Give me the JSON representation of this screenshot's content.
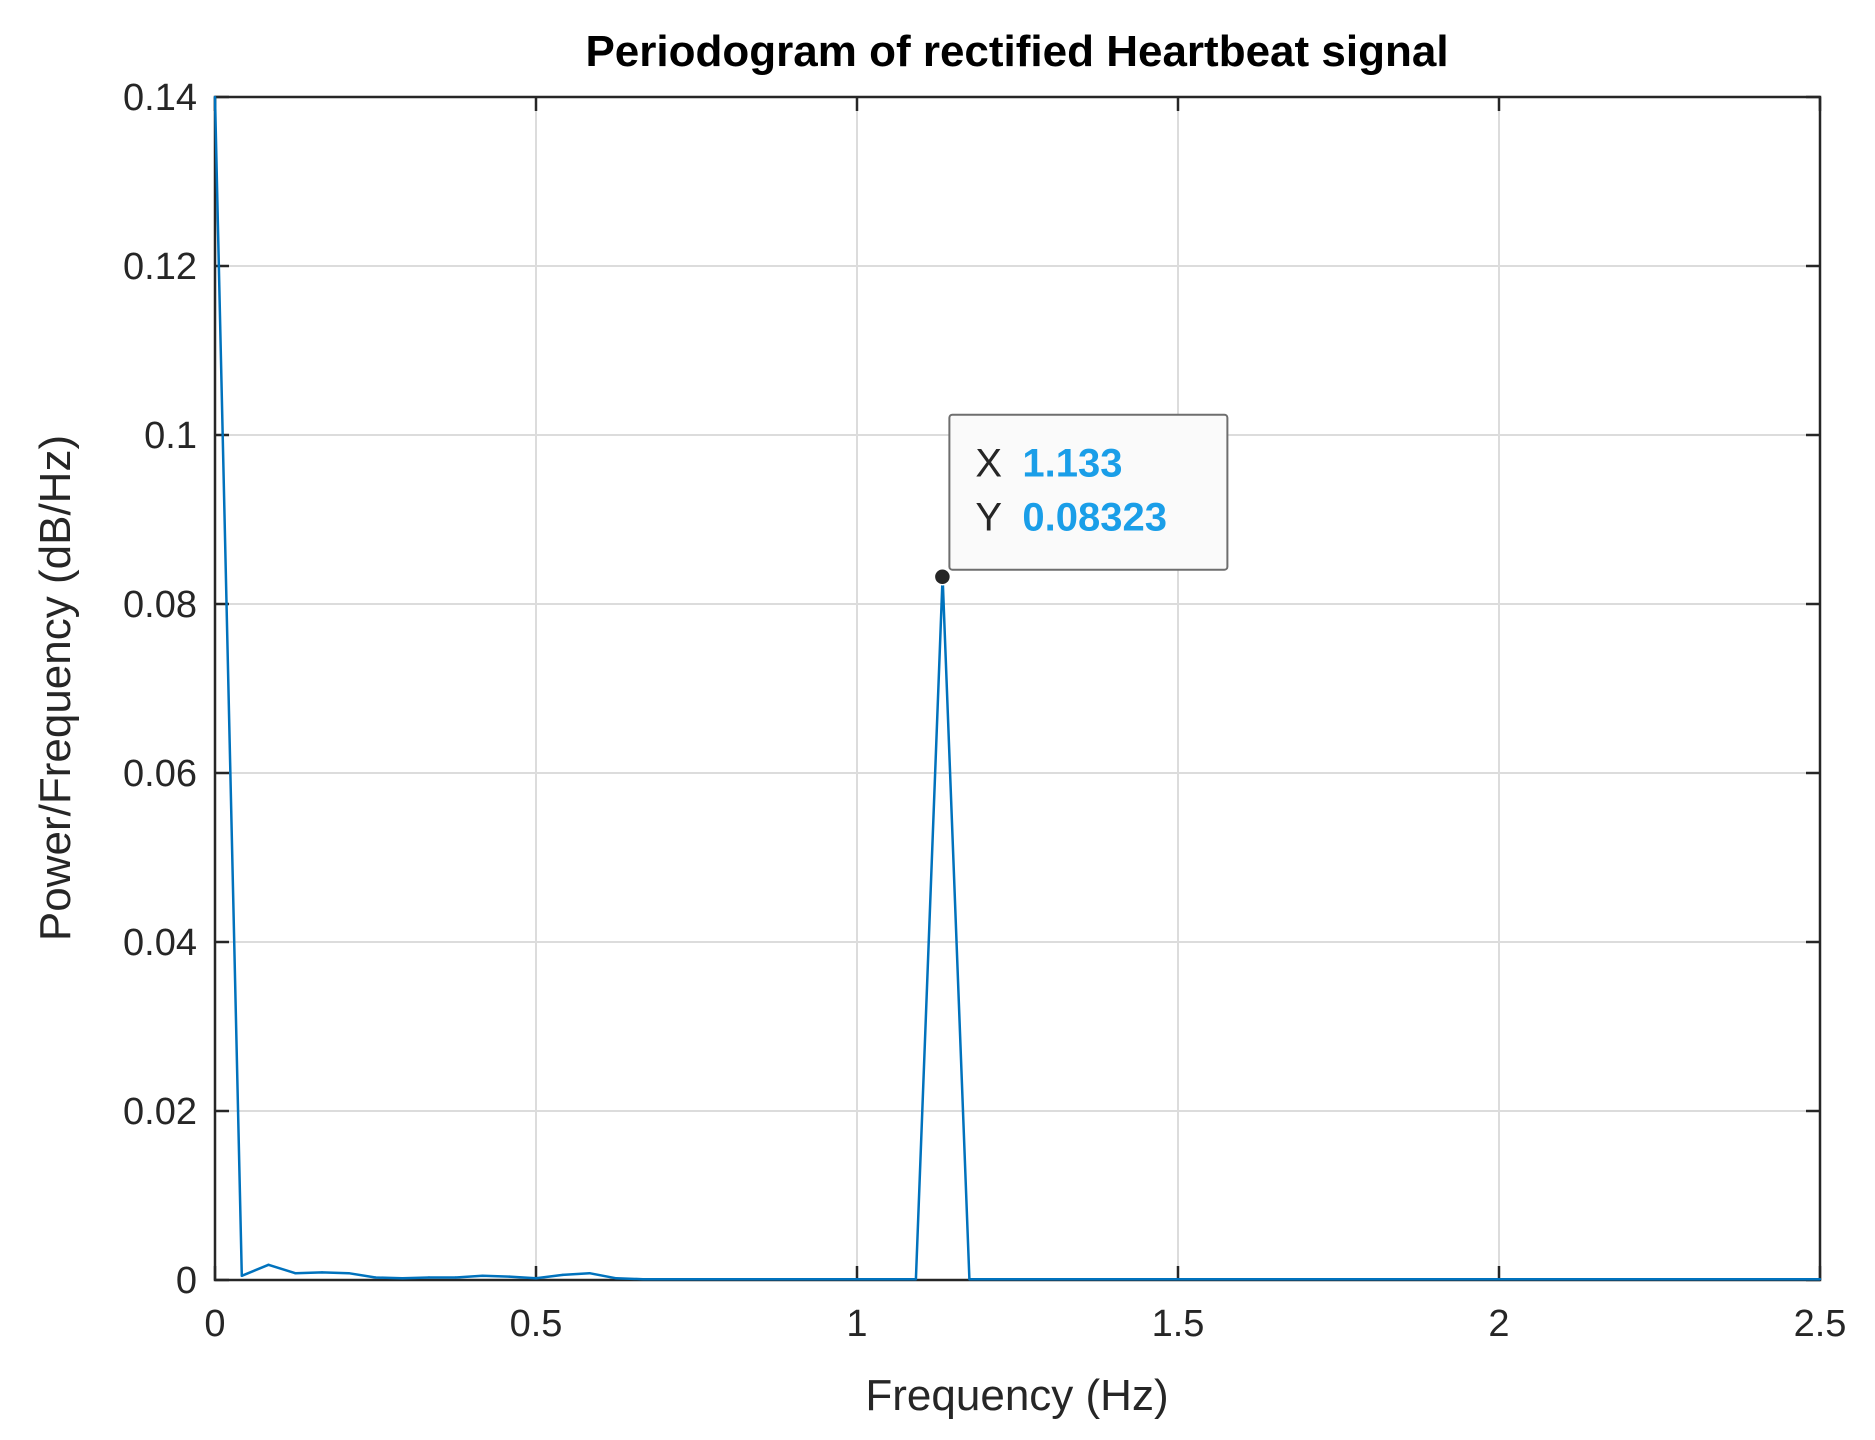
{
  "chart_data": {
    "type": "line",
    "title": "Periodogram of rectified Heartbeat signal",
    "xlabel": "Frequency (Hz)",
    "ylabel": "Power/Frequency (dB/Hz)",
    "xlim": [
      0,
      2.5
    ],
    "ylim": [
      0,
      0.14
    ],
    "xticks": [
      0,
      0.5,
      1,
      1.5,
      2,
      2.5
    ],
    "xtick_labels": [
      "0",
      "0.5",
      "1",
      "1.5",
      "2",
      "2.5"
    ],
    "yticks": [
      0,
      0.02,
      0.04,
      0.06,
      0.08,
      0.1,
      0.12,
      0.14
    ],
    "ytick_labels": [
      "0",
      "0.02",
      "0.04",
      "0.06",
      "0.08",
      "0.1",
      "0.12",
      "0.14"
    ],
    "grid": true,
    "series": [
      {
        "name": "Periodogram",
        "color": "#0072bd",
        "x": [
          0,
          0.0417,
          0.0833,
          0.125,
          0.1667,
          0.2083,
          0.25,
          0.2917,
          0.3333,
          0.375,
          0.4167,
          0.4583,
          0.5,
          0.5417,
          0.5833,
          0.625,
          0.6667,
          0.75,
          0.8333,
          0.9167,
          1.0,
          1.05,
          1.0917,
          1.1333,
          1.175,
          1.2167,
          1.3,
          1.5,
          1.75,
          2.0,
          2.25,
          2.5
        ],
        "y": [
          0.14,
          0.0005,
          0.0018,
          0.0008,
          0.0009,
          0.0008,
          0.0003,
          0.0002,
          0.0003,
          0.0003,
          0.0005,
          0.0004,
          0.0002,
          0.0006,
          0.0008,
          0.0002,
          0.0001,
          0.0001,
          0.0001,
          0.0001,
          0.0001,
          0.0001,
          0.0001,
          0.08323,
          0.0001,
          0.0001,
          0.0001,
          0.0001,
          0.0001,
          0.0001,
          0.0001,
          0.0001
        ]
      }
    ],
    "datatip": {
      "x_key": "X",
      "y_key": "Y",
      "x": 1.133,
      "y": 0.08323,
      "x_text": "1.133",
      "y_text": "0.08323"
    }
  }
}
